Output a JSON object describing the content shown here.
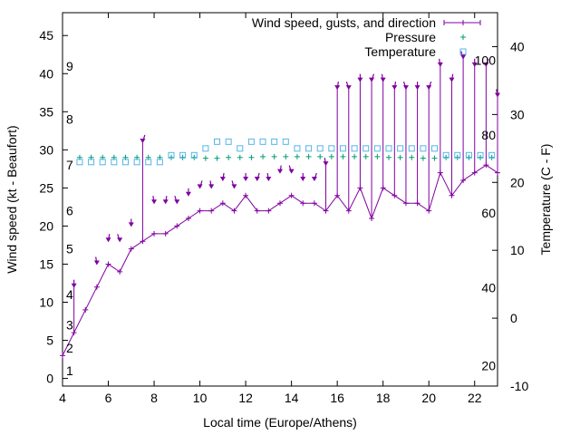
{
  "chart_data": {
    "type": "line",
    "xlabel": "Local time (Europe/Athens)",
    "ylabel": "Wind speed (kt - Beaufort)",
    "y2label": "Temperature (C - F)",
    "xlim": [
      4,
      23
    ],
    "ylim": [
      -1,
      48
    ],
    "y2lim": [
      -10,
      45
    ],
    "x_ticks": [
      4,
      6,
      8,
      10,
      12,
      14,
      16,
      18,
      20,
      22
    ],
    "y_ticks": [
      0,
      5,
      10,
      15,
      20,
      25,
      30,
      35,
      40,
      45
    ],
    "y2_ticks": [
      -10,
      0,
      10,
      20,
      30,
      40
    ],
    "beaufort_labels": [
      {
        "text": "1",
        "y": 1
      },
      {
        "text": "2",
        "y": 4
      },
      {
        "text": "3",
        "y": 7
      },
      {
        "text": "4",
        "y": 11
      },
      {
        "text": "5",
        "y": 17
      },
      {
        "text": "6",
        "y": 22
      },
      {
        "text": "7",
        "y": 28
      },
      {
        "text": "8",
        "y": 34
      },
      {
        "text": "9",
        "y": 41
      }
    ],
    "fahrenheit_labels": [
      {
        "text": "20",
        "y2": -7
      },
      {
        "text": "40",
        "y2": 4.5
      },
      {
        "text": "60",
        "y2": 15.5
      },
      {
        "text": "80",
        "y2": 27
      },
      {
        "text": "100",
        "y2": 38
      }
    ],
    "legend": {
      "position": "top-right",
      "entries": [
        {
          "label": "Wind speed, gusts, and direction",
          "color": "#8000a0",
          "symbol": "errorbar"
        },
        {
          "label": "Pressure",
          "color": "#009e73",
          "symbol": "plus"
        },
        {
          "label": "Temperature",
          "color": "#56b4e9",
          "symbol": "square"
        }
      ]
    },
    "series": [
      {
        "name": "Wind speed, gusts, and direction",
        "color": "#8000a0",
        "x": [
          4,
          4.5,
          5,
          5.5,
          6,
          6.5,
          7,
          7.5,
          8,
          8.5,
          9,
          9.5,
          10,
          10.5,
          11,
          11.5,
          12,
          12.5,
          13,
          13.5,
          14,
          14.5,
          15,
          15.5,
          16,
          16.5,
          17,
          17.5,
          18,
          18.5,
          19,
          19.5,
          20,
          20.5,
          21,
          21.5,
          22,
          22.5,
          23
        ],
        "values": [
          3,
          6,
          9,
          12,
          15,
          14,
          17,
          18,
          19,
          19,
          20,
          21,
          22,
          22,
          23,
          22,
          24,
          22,
          22,
          23,
          24,
          23,
          23,
          22,
          24,
          22,
          25,
          21,
          25,
          24,
          23,
          23,
          22,
          27,
          24,
          26,
          27,
          28,
          27
        ],
        "gusts": [
          null,
          12,
          null,
          15,
          18,
          18,
          20,
          31,
          23,
          23,
          23,
          24,
          25,
          25,
          26,
          25,
          26,
          26,
          26,
          27,
          27,
          26,
          26,
          28,
          38,
          38,
          39,
          39,
          39,
          38,
          38,
          38,
          38,
          41,
          39,
          42,
          41,
          41,
          37
        ]
      },
      {
        "name": "Pressure",
        "color": "#009e73",
        "x": [
          4.75,
          5.25,
          5.75,
          6.25,
          6.75,
          7.25,
          7.75,
          8.25,
          8.75,
          9.25,
          9.75,
          10.25,
          10.75,
          11.25,
          11.75,
          12.25,
          12.75,
          13.25,
          13.75,
          14.25,
          14.75,
          15.25,
          15.75,
          16.25,
          16.75,
          17.25,
          17.75,
          18.25,
          18.75,
          19.25,
          19.75,
          20.25,
          20.75,
          21.25,
          21.75,
          22.25,
          22.75
        ],
        "values": [
          29,
          29,
          29,
          29,
          29,
          29,
          29,
          29,
          29,
          29,
          29,
          28.9,
          28.9,
          29,
          29,
          29,
          29.1,
          29.1,
          29.1,
          29.1,
          29.1,
          29.1,
          29.1,
          29.1,
          29.1,
          29.1,
          29.1,
          29,
          29,
          29,
          28.9,
          28.9,
          29,
          29,
          29,
          29,
          29
        ]
      },
      {
        "name": "Temperature",
        "color": "#56b4e9",
        "x": [
          4.75,
          5.25,
          5.75,
          6.25,
          6.75,
          7.25,
          7.75,
          8.25,
          8.75,
          9.25,
          9.75,
          10.25,
          10.75,
          11.25,
          11.75,
          12.25,
          12.75,
          13.25,
          13.75,
          14.25,
          14.75,
          15.25,
          15.75,
          16.25,
          16.75,
          17.25,
          17.75,
          18.25,
          18.75,
          19.25,
          19.75,
          20.25,
          20.75,
          21.25,
          21.75,
          22.25,
          22.75
        ],
        "values": [
          23,
          23,
          23,
          23,
          23,
          23,
          23,
          23,
          24,
          24,
          24,
          25,
          26,
          26,
          25,
          26,
          26,
          26,
          26,
          25,
          25,
          25,
          25,
          25,
          25,
          25,
          25,
          25,
          25,
          25,
          25,
          25,
          24,
          24,
          24,
          24,
          24
        ]
      }
    ]
  }
}
